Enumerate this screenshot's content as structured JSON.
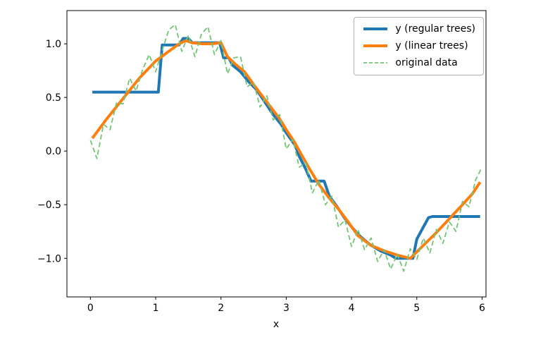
{
  "chart_data": {
    "type": "line",
    "title": "",
    "xlabel": "x",
    "ylabel": "",
    "grid": false,
    "legend_position": "upper right",
    "xlim": [
      -0.36,
      6.06
    ],
    "ylim": [
      -1.36,
      1.31
    ],
    "xticks": {
      "values": [
        0,
        1,
        2,
        3,
        4,
        5,
        6
      ],
      "labels": [
        "0",
        "1",
        "2",
        "3",
        "4",
        "5",
        "6"
      ]
    },
    "yticks": {
      "values": [
        1.0,
        0.5,
        0.0,
        -0.5,
        -1.0
      ],
      "labels": [
        "1.0",
        "0.5",
        "0.0",
        "−0.5",
        "−1.0"
      ]
    },
    "series": [
      {
        "name": "y (regular trees)",
        "color": "#1f77b4",
        "line_width": 4,
        "dash": null,
        "x": [
          0.03,
          1.04,
          1.1,
          1.36,
          1.42,
          1.5,
          1.56,
          1.98,
          2.04,
          2.12,
          2.18,
          2.3,
          2.42,
          2.55,
          2.68,
          2.8,
          2.92,
          3.0,
          3.14,
          3.2,
          3.3,
          3.38,
          3.58,
          3.66,
          3.78,
          3.9,
          4.02,
          4.14,
          4.28,
          4.44,
          4.6,
          4.68,
          4.94,
          5.0,
          5.18,
          5.24,
          5.97
        ],
        "y": [
          0.55,
          0.55,
          0.99,
          0.99,
          1.05,
          1.05,
          1.01,
          1.01,
          0.87,
          0.87,
          0.8,
          0.74,
          0.65,
          0.57,
          0.45,
          0.34,
          0.25,
          0.17,
          0.05,
          -0.05,
          -0.17,
          -0.28,
          -0.28,
          -0.42,
          -0.52,
          -0.63,
          -0.72,
          -0.8,
          -0.87,
          -0.93,
          -0.97,
          -1.0,
          -1.0,
          -0.82,
          -0.62,
          -0.61,
          -0.61
        ]
      },
      {
        "name": "y (linear trees)",
        "color": "#ff7f0e",
        "line_width": 4,
        "dash": null,
        "x": [
          0.03,
          0.25,
          0.5,
          0.75,
          1.0,
          1.2,
          1.36,
          1.46,
          1.56,
          1.72,
          1.86,
          2.0,
          2.1,
          2.22,
          2.36,
          2.5,
          2.7,
          2.9,
          3.0,
          3.12,
          3.22,
          3.36,
          3.5,
          3.66,
          3.8,
          3.96,
          4.1,
          4.3,
          4.5,
          4.7,
          4.9,
          5.1,
          5.3,
          5.5,
          5.7,
          5.85,
          5.97
        ],
        "y": [
          0.12,
          0.3,
          0.49,
          0.68,
          0.84,
          0.93,
          1.0,
          1.03,
          1.01,
          1.0,
          1.0,
          1.01,
          0.88,
          0.81,
          0.74,
          0.62,
          0.46,
          0.3,
          0.2,
          0.09,
          -0.02,
          -0.17,
          -0.31,
          -0.44,
          -0.54,
          -0.67,
          -0.79,
          -0.88,
          -0.93,
          -0.97,
          -1.0,
          -0.88,
          -0.76,
          -0.63,
          -0.5,
          -0.4,
          -0.29
        ]
      },
      {
        "name": "original data",
        "color": "#74c476",
        "line_width": 1.8,
        "dash": [
          7,
          4
        ],
        "x": [
          0.0,
          0.1,
          0.2,
          0.3,
          0.4,
          0.5,
          0.6,
          0.7,
          0.8,
          0.9,
          1.0,
          1.1,
          1.2,
          1.3,
          1.4,
          1.5,
          1.6,
          1.7,
          1.8,
          1.9,
          2.0,
          2.1,
          2.2,
          2.3,
          2.4,
          2.5,
          2.6,
          2.7,
          2.8,
          2.9,
          3.0,
          3.1,
          3.2,
          3.3,
          3.4,
          3.5,
          3.6,
          3.7,
          3.8,
          3.9,
          4.0,
          4.1,
          4.2,
          4.3,
          4.4,
          4.5,
          4.6,
          4.7,
          4.8,
          4.9,
          5.0,
          5.1,
          5.2,
          5.3,
          5.4,
          5.5,
          5.6,
          5.7,
          5.8,
          5.9,
          6.0
        ],
        "y": [
          0.1,
          -0.07,
          0.25,
          0.2,
          0.45,
          0.44,
          0.68,
          0.56,
          0.76,
          0.9,
          0.74,
          0.94,
          1.13,
          1.18,
          0.93,
          1.08,
          0.88,
          1.09,
          1.16,
          0.9,
          1.03,
          0.72,
          0.87,
          0.88,
          0.6,
          0.64,
          0.41,
          0.52,
          0.29,
          0.34,
          0.02,
          0.11,
          -0.15,
          -0.11,
          -0.39,
          -0.27,
          -0.5,
          -0.42,
          -0.71,
          -0.64,
          -0.89,
          -0.73,
          -0.92,
          -0.81,
          -1.03,
          -0.92,
          -1.1,
          -0.96,
          -1.12,
          -0.91,
          -1.01,
          -0.81,
          -0.95,
          -0.73,
          -0.86,
          -0.66,
          -0.75,
          -0.47,
          -0.52,
          -0.27,
          -0.15
        ]
      }
    ]
  }
}
